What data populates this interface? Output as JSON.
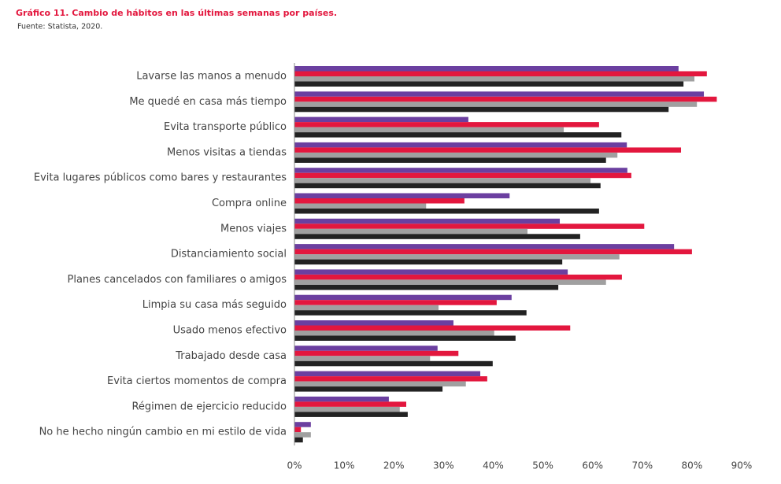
{
  "chart_data": {
    "type": "hbar",
    "title": "Gráfico 11. Cambio de hábitos en las últimas semanas por países.",
    "subtitle": "Fuente: Statista, 2020.",
    "categories": [
      "Lavarse las manos a menudo",
      "Me quedé en casa más tiempo",
      "Evita transporte público",
      "Menos visitas a tiendas",
      "Evita lugares públicos  como bares y restaurantes",
      "Compra online",
      "Menos viajes",
      "Distanciamiento social",
      "Planes cancelados con familiares o amigos",
      "Limpia su casa más seguido",
      "Usado menos efectivo",
      "Trabajado desde casa",
      "Evita ciertos momentos de compra",
      "Régimen de ejercicio reducido",
      "No he hecho ningún cambio en mi estilo de vida"
    ],
    "series": [
      {
        "color": "#6b3fa0",
        "values": [
          77.3,
          82.4,
          35,
          66.9,
          67,
          43.3,
          53.4,
          76.4,
          55,
          43.7,
          32,
          28.8,
          37.4,
          19,
          3.3
        ]
      },
      {
        "color": "#e3173e",
        "values": [
          83,
          85,
          61.3,
          77.8,
          67.8,
          34.2,
          70.4,
          80,
          65.9,
          40.7,
          55.5,
          33,
          38.8,
          22.5,
          1.3
        ]
      },
      {
        "color": "#a0a0a0",
        "values": [
          80.5,
          81,
          54.2,
          65,
          59.6,
          26.5,
          46.9,
          65.4,
          62.7,
          29,
          40.2,
          27.3,
          34.5,
          21.2,
          3.3
        ]
      },
      {
        "color": "#222222",
        "values": [
          78.3,
          75.3,
          65.8,
          62.7,
          61.6,
          61.3,
          57.5,
          53.9,
          53.1,
          46.7,
          44.5,
          39.9,
          29.8,
          22.8,
          1.7
        ]
      }
    ],
    "xlim": [
      0,
      90
    ],
    "xticks": [
      {
        "value": 0,
        "label": "0%"
      },
      {
        "value": 10,
        "label": "10%"
      },
      {
        "value": 20,
        "label": "20%"
      },
      {
        "value": 30,
        "label": "30%"
      },
      {
        "value": 40,
        "label": "40%"
      },
      {
        "value": 50,
        "label": "50%"
      },
      {
        "value": 60,
        "label": "60%"
      },
      {
        "value": 70,
        "label": "70%"
      },
      {
        "value": 80,
        "label": "80%"
      },
      {
        "value": 90,
        "label": "90%"
      }
    ],
    "grid": false
  }
}
